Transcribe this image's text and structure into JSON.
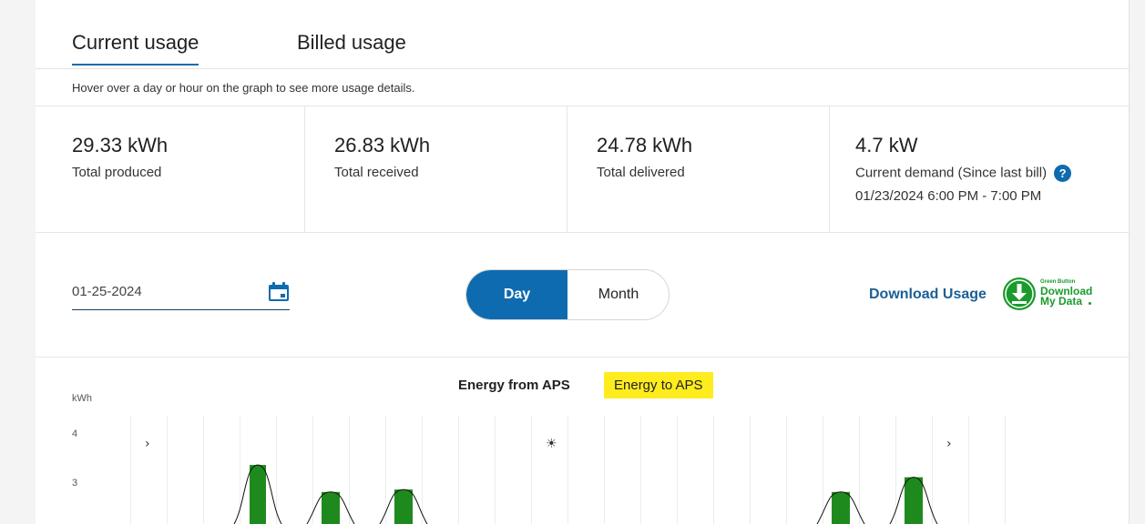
{
  "tabs": [
    {
      "label": "Current usage",
      "active": true
    },
    {
      "label": "Billed usage",
      "active": false
    }
  ],
  "hint": "Hover over a day or hour on the graph to see more usage details.",
  "stats": [
    {
      "value": "29.33 kWh",
      "label": "Total produced"
    },
    {
      "value": "26.83 kWh",
      "label": "Total received"
    },
    {
      "value": "24.78 kWh",
      "label": "Total delivered"
    },
    {
      "value": "4.7 kW",
      "label": "Current demand (Since last bill)",
      "sub": "01/23/2024 6:00 PM - 7:00 PM",
      "help_icon": "question-circle-icon"
    }
  ],
  "controls": {
    "date_value": "01-25-2024",
    "calendar_icon": "calendar-icon",
    "toggle": {
      "day": "Day",
      "month": "Month",
      "selected": "Day"
    },
    "download_label": "Download Usage",
    "green_button": {
      "small": "Green Button",
      "line1": "Download",
      "line2": "My Data",
      "icon": "download-arrow-icon"
    }
  },
  "colors": {
    "accent": "#0e6bb0",
    "bar": "#1e8a1e",
    "highlight": "#ffec1f",
    "green_button": "#1a9b2c"
  },
  "legend": {
    "from": "Energy from APS",
    "to": "Energy to APS",
    "to_highlighted": true
  },
  "chart_data": {
    "type": "bar",
    "ylabel": "kWh",
    "yticks": [
      "4",
      "3"
    ],
    "ylim": [
      2.2,
      4.2
    ],
    "markers": [
      {
        "kind": "moon-icon",
        "glyph": "›",
        "slot": 0
      },
      {
        "kind": "sun-icon",
        "glyph": "☀",
        "slot": 11
      },
      {
        "kind": "moon-icon",
        "glyph": "›",
        "slot": 22
      }
    ],
    "values": [
      null,
      null,
      null,
      3.35,
      null,
      2.8,
      null,
      2.85,
      null,
      null,
      null,
      null,
      null,
      null,
      null,
      null,
      null,
      null,
      null,
      2.8,
      null,
      3.1,
      null,
      null
    ],
    "curves": [
      3,
      5,
      7,
      19,
      21
    ]
  }
}
